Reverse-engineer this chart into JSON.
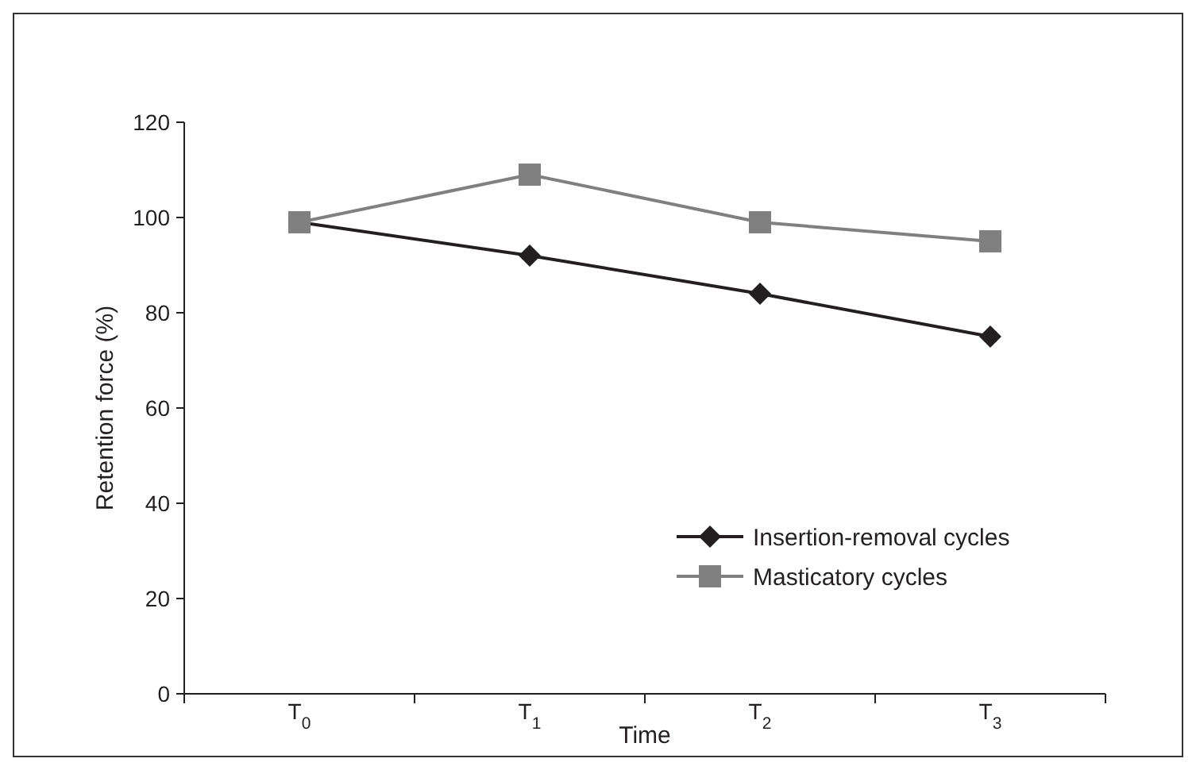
{
  "chart_data": {
    "type": "line",
    "xlabel": "Time",
    "ylabel": "Retention force (%)",
    "categories": [
      "T$_{0}$",
      "T$_{1}$",
      "T$_{2}$",
      "T$_{3}$"
    ],
    "series": [
      {
        "name": "Insertion-removal cycles",
        "color": "#231f20",
        "values": [
          99,
          92,
          84,
          75
        ],
        "marker": "diamond"
      },
      {
        "name": "Masticatory cycles",
        "color": "#808080",
        "values": [
          99,
          109,
          99,
          95
        ],
        "marker": "square"
      }
    ],
    "ylim": [
      0,
      120
    ],
    "yticks": [
      0,
      20,
      40,
      60,
      80,
      100,
      120
    ],
    "legend": "bottom right",
    "grid": false
  }
}
